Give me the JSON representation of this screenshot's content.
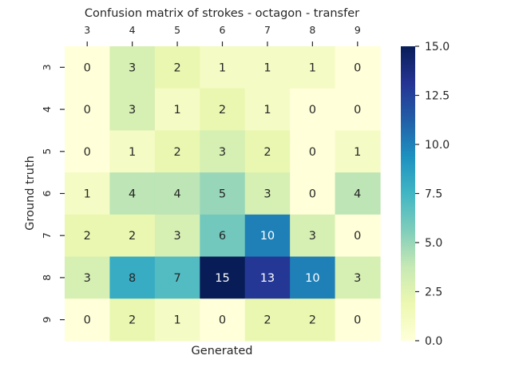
{
  "chart_data": {
    "type": "heatmap",
    "title": "Confusion matrix of strokes - octagon - transfer",
    "xlabel": "Generated",
    "ylabel": "Ground truth",
    "x_categories": [
      "3",
      "4",
      "5",
      "6",
      "7",
      "8",
      "9"
    ],
    "y_categories": [
      "3",
      "4",
      "5",
      "6",
      "7",
      "8",
      "9"
    ],
    "x_axis_position": "top",
    "values": [
      [
        0,
        3,
        2,
        1,
        1,
        1,
        0
      ],
      [
        0,
        3,
        1,
        2,
        1,
        0,
        0
      ],
      [
        0,
        1,
        2,
        3,
        2,
        0,
        1
      ],
      [
        1,
        4,
        4,
        5,
        3,
        0,
        4
      ],
      [
        2,
        2,
        3,
        6,
        10,
        3,
        0
      ],
      [
        3,
        8,
        7,
        15,
        13,
        10,
        3
      ],
      [
        0,
        2,
        1,
        0,
        2,
        2,
        0
      ]
    ],
    "colormap": "YlGnBu",
    "colorbar": {
      "range": [
        0,
        15
      ],
      "ticks": [
        "0.0",
        "2.5",
        "5.0",
        "7.5",
        "10.0",
        "12.5",
        "15.0"
      ]
    },
    "annotations": true,
    "grid": false
  }
}
